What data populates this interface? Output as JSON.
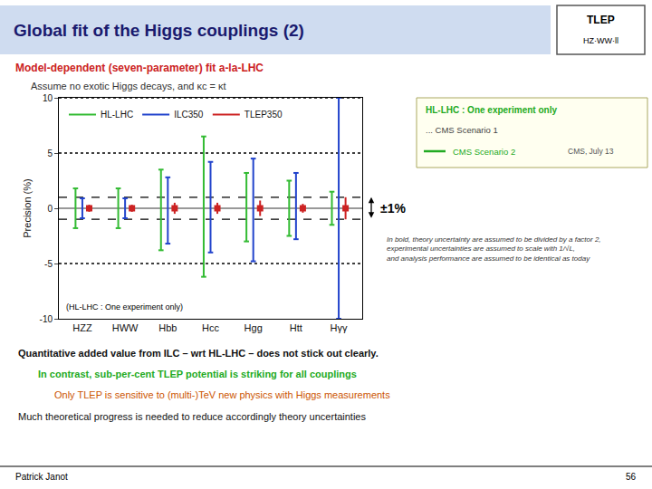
{
  "chart_data": {
    "type": "errorbar",
    "title": "Global fit of the Higgs couplings (2)",
    "subtitles": [
      "Model-dependent (seven-parameter) fit a-la-LHC",
      "Assume no exotic Higgs decays, and κc = κt"
    ],
    "categories": [
      "HZZ",
      "HWW",
      "Hbb",
      "Hcc",
      "Hgg",
      "Htt",
      "Hγγ"
    ],
    "series": [
      {
        "name": "HL-LHC",
        "color": "#33bb33",
        "low": [
          -1.8,
          -1.8,
          -3.8,
          -6.2,
          -3.0,
          -2.5,
          -1.5
        ],
        "high": [
          1.8,
          1.8,
          3.5,
          6.5,
          3.2,
          2.5,
          1.5
        ]
      },
      {
        "name": "ILC350",
        "color": "#2244cc",
        "low": [
          -0.9,
          -0.9,
          -3.2,
          -4.0,
          -4.8,
          -2.8,
          -10.0
        ],
        "high": [
          0.9,
          0.9,
          2.8,
          4.2,
          4.5,
          3.2,
          10.0
        ]
      },
      {
        "name": "TLEP350",
        "color": "#cc2222",
        "marker": "square",
        "values": [
          0.0,
          0.0,
          0.0,
          0.0,
          0.0,
          0.0,
          0.0
        ],
        "low": [
          -0.32,
          -0.32,
          -0.5,
          -0.5,
          -0.7,
          -0.4,
          -1.0
        ],
        "high": [
          0.32,
          0.32,
          0.5,
          0.5,
          0.7,
          0.4,
          1.0
        ]
      }
    ],
    "ylabel": "Precision (%)",
    "ylim": [
      -10,
      10
    ],
    "yticks": [
      -10,
      -5,
      0,
      5,
      10
    ],
    "grid": false,
    "legend": "upper left",
    "reference_lines": [
      {
        "value": 1.0,
        "line_style": "dashed"
      },
      {
        "value": -1.0,
        "line_style": "dashed"
      },
      {
        "value": 0.0,
        "line_style": "solid"
      },
      {
        "value": 10,
        "line_style": "dotted"
      },
      {
        "value": 5,
        "line_style": "dotted"
      },
      {
        "value": -5,
        "line_style": "dotted"
      }
    ],
    "bracket": {
      "from": -1.0,
      "to": 1.0,
      "label": "±1%"
    },
    "annotations": [
      "(HL-LHC : One experiment only)"
    ],
    "logo": [
      "TLEP",
      "HZ·WW·ll"
    ],
    "info_box": [
      "HL-LHC : One experiment only",
      "... CMS Scenario 1",
      "CMS Scenario 2",
      "CMS, July 13"
    ],
    "note": [
      "In bold, theory uncertainty are assumed to be divided by a factor 2,",
      "experimental uncertainties are assumed to scale with 1/√L,",
      "and analysis performance are assumed to be identical as today"
    ],
    "bullets": [
      "Quantitative added value from ILC – wrt HL-LHC – does not stick out clearly.",
      "In contrast, sub-per-cent TLEP potential is striking for all couplings",
      "Only TLEP is sensitive to (multi-)TeV new physics with Higgs measurements",
      "Much theoretical progress is needed to reduce accordingly theory uncertainties"
    ],
    "footer": [
      "Patrick Janot",
      "56"
    ]
  }
}
